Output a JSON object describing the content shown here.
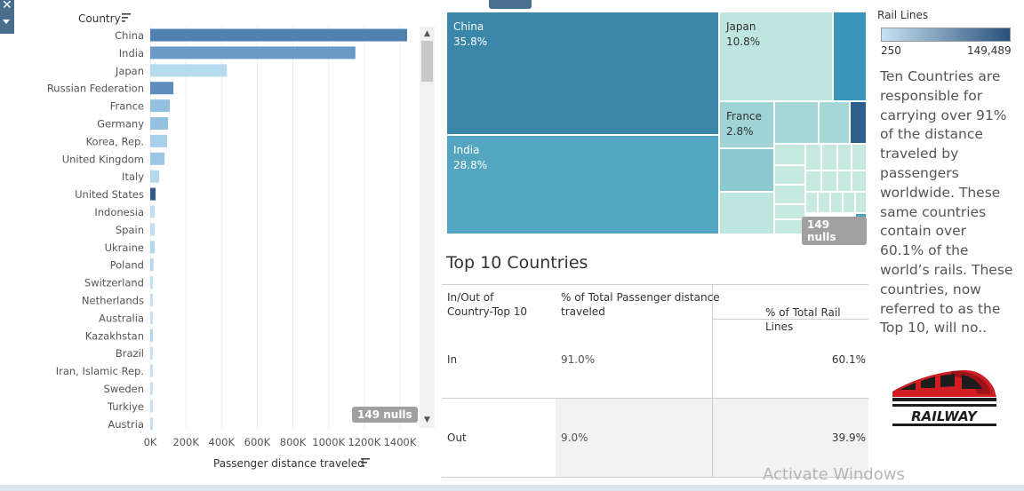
{
  "bar_chart": {
    "header": "Country",
    "x_axis_title": "Passenger distance traveled",
    "nulls_badge": "149 nulls"
  },
  "chart_data": [
    {
      "type": "bar",
      "orientation": "horizontal",
      "ylabel": "Country",
      "xlabel": "Passenger distance traveled",
      "xlim": [
        0,
        1500000
      ],
      "x_ticks": [
        "0K",
        "200K",
        "400K",
        "600K",
        "800K",
        "1000K",
        "1200K",
        "1400K"
      ],
      "grid": true,
      "categories": [
        "China",
        "India",
        "Japan",
        "Russian Federation",
        "France",
        "Germany",
        "Korea, Rep.",
        "United Kingdom",
        "Italy",
        "United States",
        "Indonesia",
        "Spain",
        "Ukraine",
        "Poland",
        "Switzerland",
        "Netherlands",
        "Australia",
        "Kazakhstan",
        "Brazil",
        "Iran, Islamic Rep.",
        "Sweden",
        "Turkiye",
        "Austria"
      ],
      "values": [
        1440000,
        1150000,
        430000,
        130000,
        110000,
        100000,
        95000,
        80000,
        50000,
        30000,
        25000,
        25000,
        25000,
        18000,
        15000,
        13000,
        12000,
        12000,
        8000,
        10000,
        8000,
        7000,
        6000
      ],
      "bar_colors": [
        "#4f81b0",
        "#6a9bc7",
        "#b7dbee",
        "#5d8ebe",
        "#95c1e0",
        "#95c1e0",
        "#a8d0ea",
        "#9cc7e4",
        "#b3d8ee",
        "#2f5c8c",
        "#c0dff1",
        "#c0dff1",
        "#b3d8ee",
        "#b3d8ee",
        "#c4e1f2",
        "#c4e1f2",
        "#c4e1f2",
        "#b3d8ee",
        "#c4e1f2",
        "#c4e1f2",
        "#c4e1f2",
        "#c4e1f2",
        "#c4e1f2"
      ]
    },
    {
      "type": "treemap",
      "items": [
        {
          "label": "China",
          "value": "35.8%",
          "color": "#3a87aa"
        },
        {
          "label": "India",
          "value": "28.8%",
          "color": "#53a5c0"
        },
        {
          "label": "Japan",
          "value": "10.8%",
          "color": "#bfe5df"
        },
        {
          "label": "France",
          "value": "2.8%",
          "color": "#a0d3d6"
        }
      ],
      "nulls_badge": "149 nulls"
    }
  ],
  "legend": {
    "title": "Rail Lines",
    "min_label": "250",
    "max_label": "149,489",
    "low_color": "#c6e2f2",
    "high_color": "#28507a"
  },
  "description": "Ten Countries are responsible for carrying over 91% of the distance traveled by passengers worldwide. These same countries contain over 60.1% of the world’s rails. These countries, now referred to as the Top 10, will no..",
  "top10": {
    "title": "Top 10 Countries",
    "col1_line1": "In/Out of",
    "col1_line2": "Country-Top 10",
    "col2_line1": "% of Total Passenger distance",
    "col2_line2": "traveled",
    "col3": "% of Total Rail Lines",
    "rows": [
      {
        "label": "In",
        "passenger": "91.0%",
        "rails": "60.1%"
      },
      {
        "label": "Out",
        "passenger": "9.0%",
        "rails": "39.9%"
      }
    ]
  },
  "logo": {
    "text": "RAILWAY"
  },
  "watermark": "Activate Windows"
}
